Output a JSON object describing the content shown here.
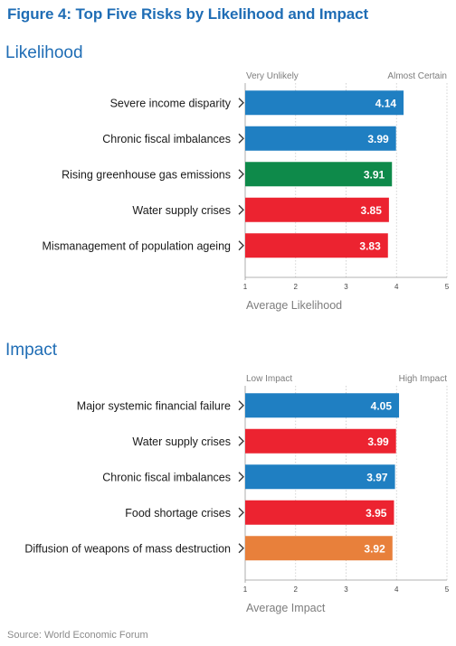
{
  "figure_title": "Figure 4: Top Five Risks by Likelihood and Impact",
  "source": "Source: World Economic Forum",
  "colors": {
    "blue": "#1f7fc2",
    "green": "#0e8a4a",
    "red": "#ec2330",
    "orange": "#e8803b",
    "title_blue": "#1f6db5"
  },
  "chart_data": [
    {
      "type": "bar",
      "orientation": "horizontal",
      "title": "Likelihood",
      "xlabel": "Average Likelihood",
      "xlim": [
        1,
        5
      ],
      "ticks": [
        "1",
        "2",
        "3",
        "4",
        "5"
      ],
      "scale_low_label": "Very Unlikely",
      "scale_high_label": "Almost Certain",
      "grid": true,
      "categories": [
        "Severe income disparity",
        "Chronic fiscal imbalances",
        "Rising greenhouse gas emissions",
        "Water supply crises",
        "Mismanagement of population ageing"
      ],
      "values": [
        4.14,
        3.99,
        3.91,
        3.85,
        3.83
      ],
      "value_labels": [
        "4.14",
        "3.99",
        "3.91",
        "3.85",
        "3.83"
      ],
      "bar_colors": [
        "#1f7fc2",
        "#1f7fc2",
        "#0e8a4a",
        "#ec2330",
        "#ec2330"
      ]
    },
    {
      "type": "bar",
      "orientation": "horizontal",
      "title": "Impact",
      "xlabel": "Average Impact",
      "xlim": [
        1,
        5
      ],
      "ticks": [
        "1",
        "2",
        "3",
        "4",
        "5"
      ],
      "scale_low_label": "Low Impact",
      "scale_high_label": "High Impact",
      "grid": true,
      "categories": [
        "Major systemic financial failure",
        "Water supply crises",
        "Chronic fiscal imbalances",
        "Food shortage crises",
        "Diffusion of weapons of mass destruction"
      ],
      "values": [
        4.05,
        3.99,
        3.97,
        3.95,
        3.92
      ],
      "value_labels": [
        "4.05",
        "3.99",
        "3.97",
        "3.95",
        "3.92"
      ],
      "bar_colors": [
        "#1f7fc2",
        "#ec2330",
        "#1f7fc2",
        "#ec2330",
        "#e8803b"
      ]
    }
  ]
}
